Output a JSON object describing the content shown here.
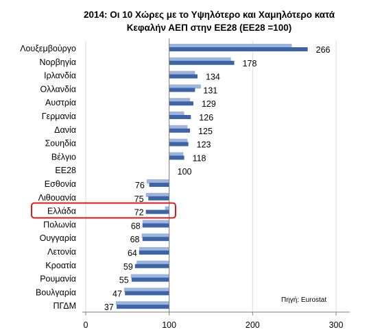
{
  "chart_data": {
    "type": "bar",
    "title": "2014: Οι 10  Χώρες με το Υψηλότερο και Χαμηλότερο κατά",
    "subtitle": "Κεφαλήν ΑΕΠ στην ΕΕ28   (ΕΕ28 =100)",
    "source": "Πηγή: Eurostat",
    "xlim": [
      0,
      300
    ],
    "x_ticks": [
      "0",
      "100",
      "200",
      "300"
    ],
    "baseline": 100,
    "categories": [
      "Λουξεμβούργο",
      "Νορβηγία",
      "Ιρλανδία",
      "Ολλανδία",
      "Αυστρία",
      "Γερμανία",
      "Δανία",
      "Σουηδία",
      "Βέλγιο",
      "ΕΕ28",
      "Εσθονία",
      "Λιθουανία",
      "Ελλάδα",
      "Πολωνία",
      "Ουγγαρία",
      "Λετονία",
      "Κροατία",
      "Ρουμανία",
      "Βουλγαρία",
      "ΠΓΔΜ"
    ],
    "series": [
      {
        "values": [
          247,
          174,
          131,
          138,
          125,
          118,
          122,
          122,
          117,
          100,
          73,
          72,
          95,
          68,
          67,
          64,
          61,
          54,
          46,
          36
        ]
      },
      {
        "values": [
          266,
          178,
          134,
          131,
          129,
          126,
          125,
          123,
          118,
          100,
          76,
          75,
          72,
          68,
          68,
          64,
          59,
          55,
          47,
          37
        ]
      }
    ],
    "value_labels": [
      "266",
      "178",
      "134",
      "131",
      "129",
      "126",
      "125",
      "123",
      "118",
      "100",
      "76",
      "75",
      "72",
      "68",
      "68",
      "64",
      "59",
      "55",
      "47",
      "37"
    ],
    "highlight": "Ελλάδα",
    "colors": {
      "series_light": "#9db4dc",
      "series_dark": "#3c64a6",
      "highlight_border": "#e0161c",
      "grid": "#d9d9d9"
    },
    "grid": true
  }
}
